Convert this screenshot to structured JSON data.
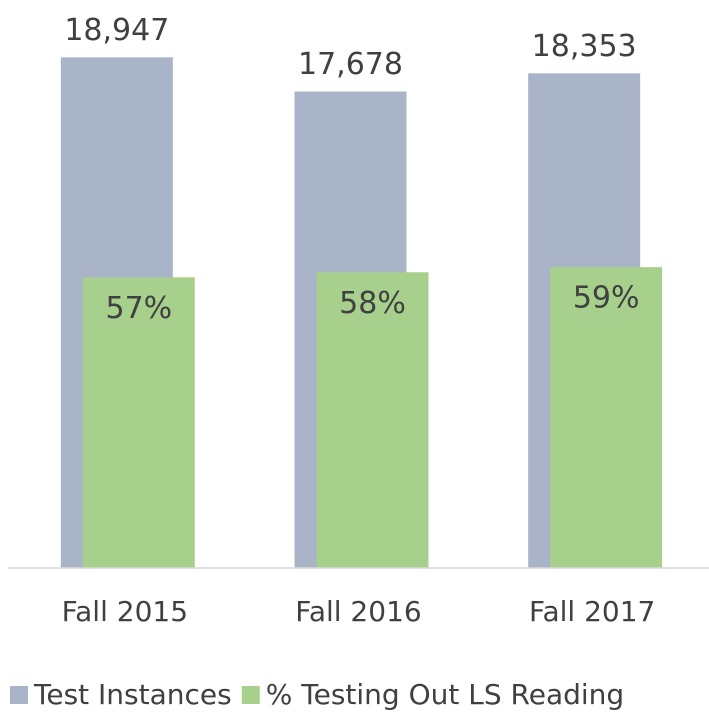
{
  "chart_data": {
    "type": "bar",
    "categories": [
      "Fall 2015",
      "Fall 2016",
      "Fall 2017"
    ],
    "series": [
      {
        "name": "Test Instances",
        "color": "#a9b4c8",
        "values": [
          18947,
          17678,
          18353
        ],
        "value_labels": [
          "18,947",
          "17,678",
          "18,353"
        ]
      },
      {
        "name": "% Testing Out LS Reading",
        "color": "#a8d08d",
        "axis": "y2",
        "values": [
          57,
          58,
          59
        ],
        "value_labels": [
          "57%",
          "58%",
          "59%"
        ]
      }
    ],
    "ylim": [
      0,
      21000
    ],
    "y2lim": [
      0,
      111
    ],
    "legend": "bottom"
  }
}
